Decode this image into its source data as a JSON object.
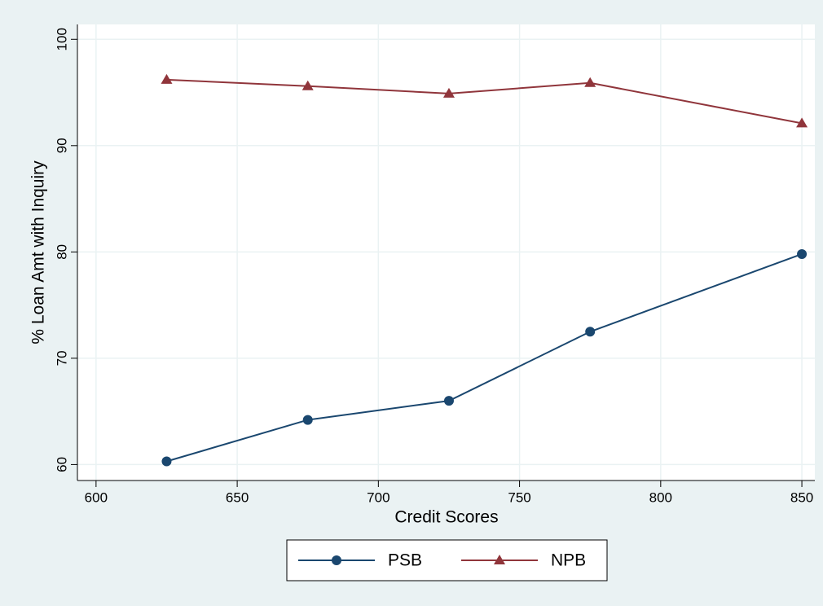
{
  "chart_data": {
    "type": "line",
    "x_label": "Credit Scores",
    "y_label": "% Loan Amt with Inquiry",
    "x": [
      625,
      675,
      725,
      775,
      850
    ],
    "series": [
      {
        "name": "PSB",
        "color": "#1a476f",
        "marker": "circle",
        "values": [
          60.3,
          64.2,
          66.0,
          72.5,
          79.8
        ]
      },
      {
        "name": "NPB",
        "color": "#90353b",
        "marker": "triangle",
        "values": [
          96.2,
          95.6,
          94.9,
          95.9,
          92.1
        ]
      }
    ],
    "xlim": [
      593.4,
      854.6
    ],
    "ylim": [
      58.5,
      101.4
    ],
    "xticks": [
      600,
      650,
      700,
      750,
      800,
      850
    ],
    "yticks": [
      60,
      70,
      80,
      90,
      100
    ],
    "grid": true,
    "legend": "bottom"
  }
}
